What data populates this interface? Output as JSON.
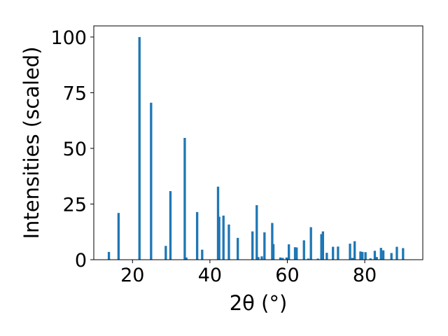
{
  "chart_data": {
    "type": "bar",
    "title": "",
    "xlabel": "2θ (°)",
    "ylabel": "Intensities (scaled)",
    "xlim": [
      10,
      95
    ],
    "ylim": [
      0,
      105
    ],
    "xticks": [
      20,
      40,
      60,
      80
    ],
    "yticks": [
      0,
      25,
      50,
      75,
      100
    ],
    "grid": false,
    "bar_width": 0.6,
    "bar_color": "#1f77b4",
    "x": [
      13.9,
      16.4,
      21.8,
      24.8,
      28.6,
      29.8,
      33.5,
      33.9,
      36.7,
      38.0,
      42.1,
      42.4,
      43.5,
      44.9,
      47.2,
      51.0,
      52.1,
      52.5,
      53.4,
      54.1,
      56.1,
      56.4,
      58.2,
      58.8,
      59.8,
      60.4,
      62.0,
      62.4,
      64.3,
      65.4,
      66.1,
      67.9,
      68.8,
      69.2,
      70.2,
      71.8,
      73.1,
      76.2,
      76.8,
      77.4,
      78.9,
      79.4,
      80.2,
      81.5,
      82.6,
      83.1,
      84.2,
      84.8,
      86.9,
      88.3,
      89.9
    ],
    "values": [
      3.5,
      21.0,
      100.0,
      70.5,
      6.2,
      30.8,
      54.7,
      1.0,
      21.4,
      4.5,
      32.8,
      19.3,
      19.8,
      15.8,
      9.8,
      12.7,
      24.5,
      1.2,
      1.5,
      12.3,
      16.5,
      7.0,
      1.0,
      0.8,
      1.0,
      6.9,
      5.6,
      5.5,
      8.7,
      0.5,
      14.6,
      0.5,
      11.5,
      12.7,
      3.1,
      5.8,
      5.9,
      7.2,
      0.8,
      8.3,
      3.7,
      3.5,
      3.4,
      0.6,
      4.0,
      1.2,
      5.3,
      4.2,
      3.0,
      5.8,
      5.2
    ]
  }
}
